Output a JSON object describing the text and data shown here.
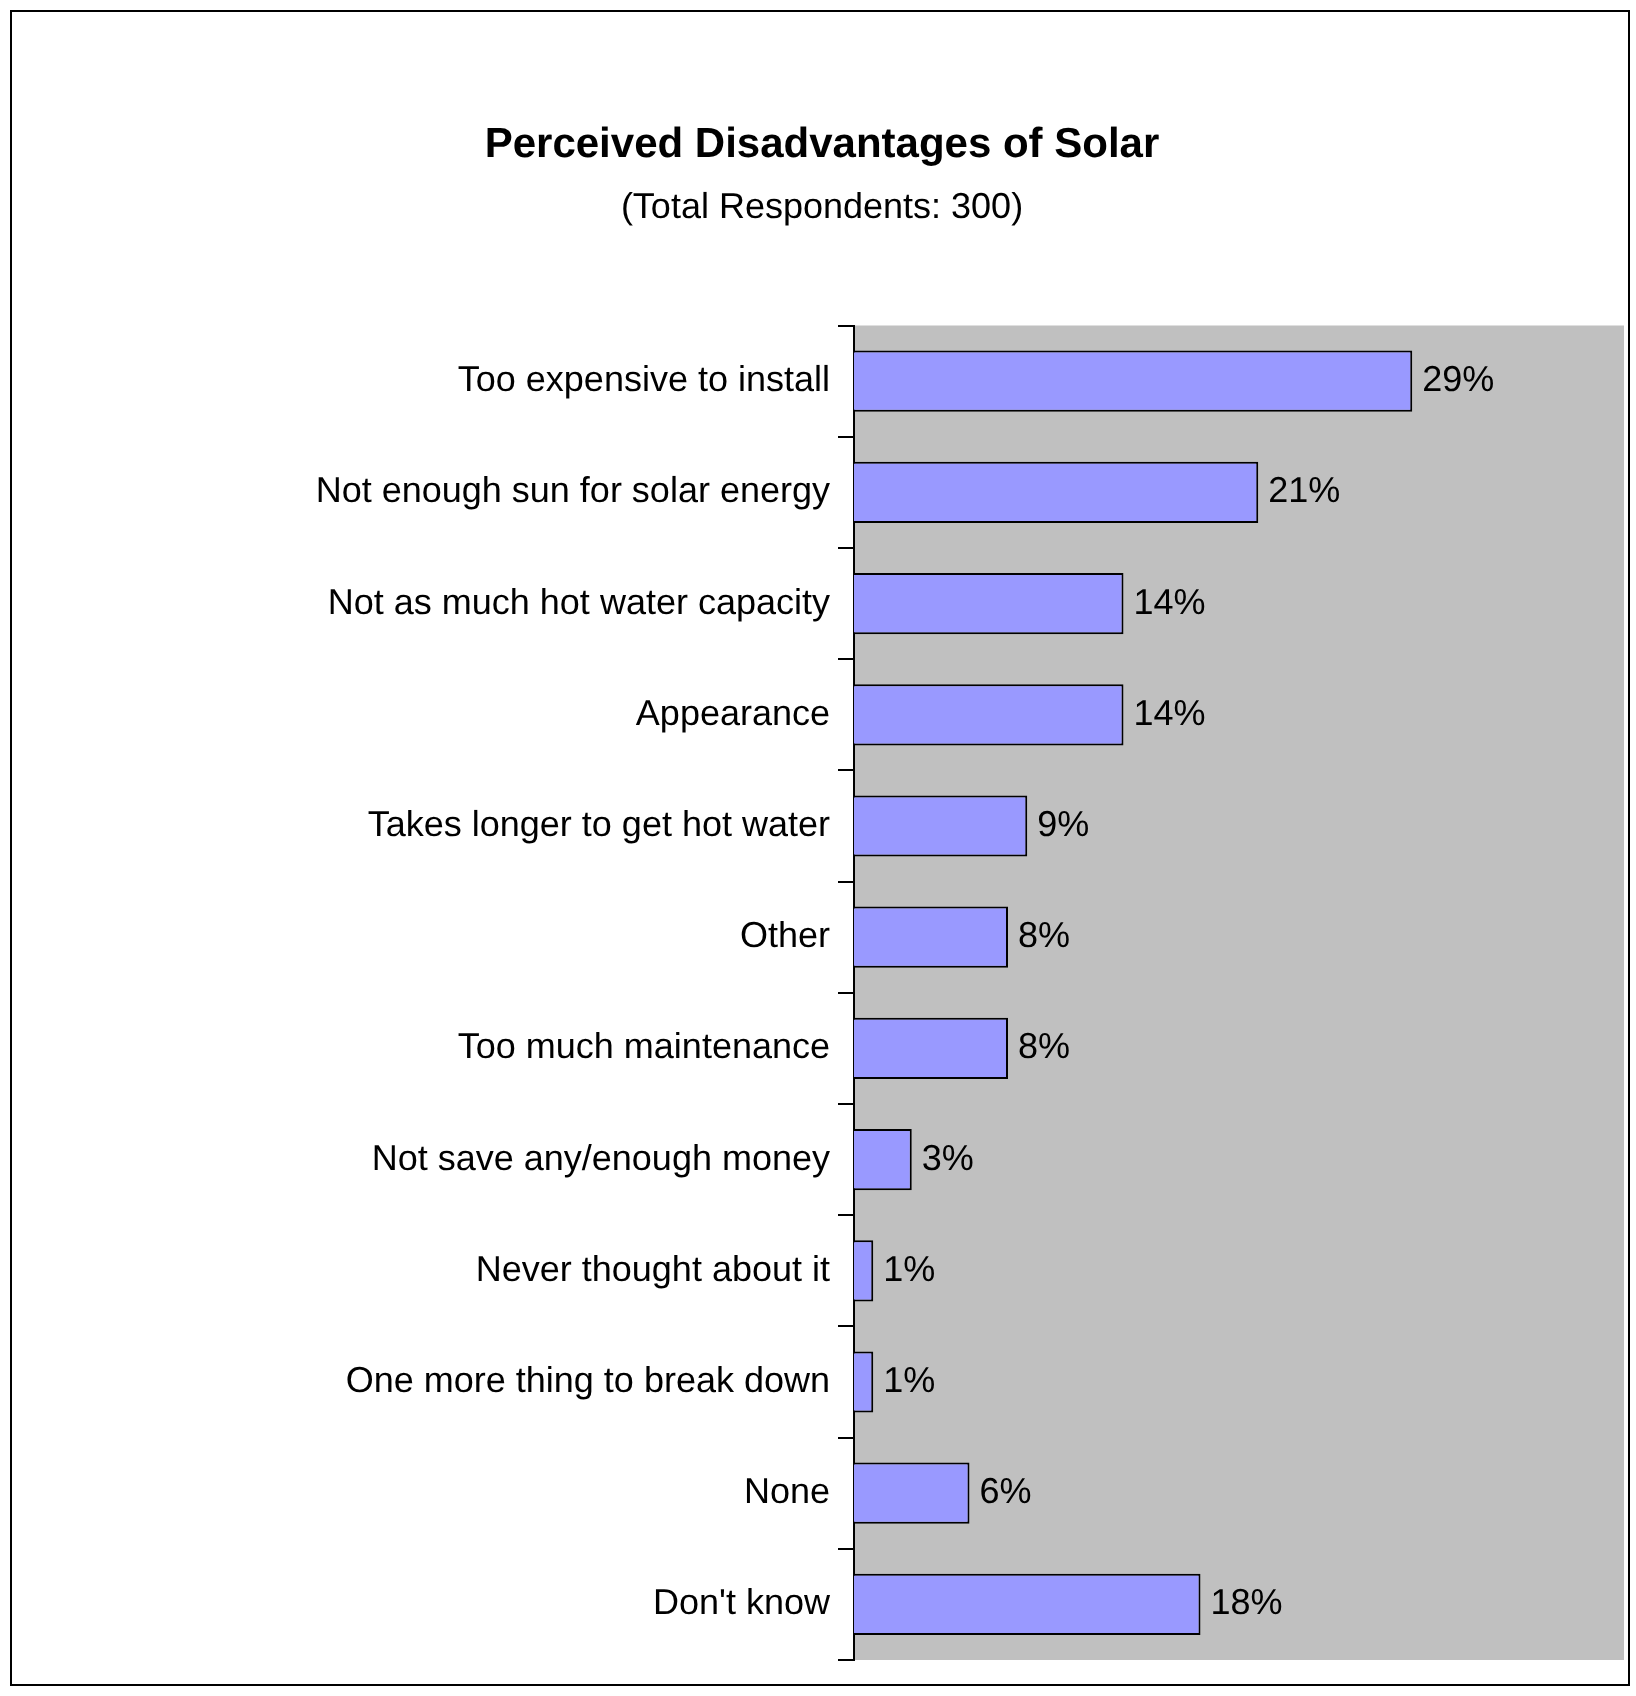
{
  "chart_data": {
    "type": "bar",
    "orientation": "horizontal",
    "title": "Perceived Disadvantages of Solar",
    "subtitle": "(Total Respondents: 300)",
    "categories": [
      "Too expensive to install",
      "Not enough sun for solar energy",
      "Not as much hot water capacity",
      "Appearance",
      "Takes longer to get hot water",
      "Other",
      "Too much maintenance",
      "Not save any/enough money",
      "Never thought about it",
      "One more thing to break down",
      "None",
      "Don't know"
    ],
    "values": [
      29,
      21,
      14,
      14,
      9,
      8,
      8,
      3,
      1,
      1,
      6,
      18
    ],
    "value_labels": [
      "29%",
      "21%",
      "14%",
      "14%",
      "9%",
      "8%",
      "8%",
      "3%",
      "1%",
      "1%",
      "6%",
      "18%"
    ],
    "color": "#9999ff",
    "xlim": [
      0,
      40
    ],
    "tick_labels": "y",
    "legend": false
  }
}
